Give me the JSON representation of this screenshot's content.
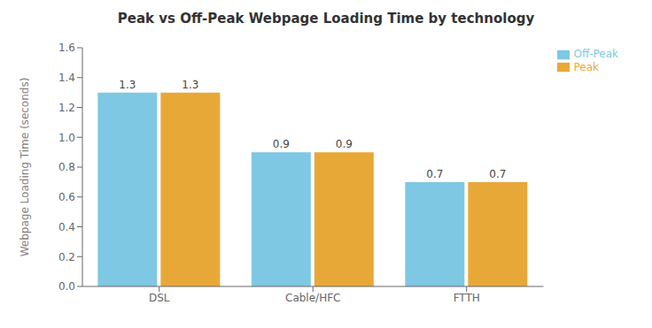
{
  "chart_data": {
    "type": "bar",
    "title": "Peak vs Off-Peak Webpage Loading Time by technology",
    "ylabel": "Webpage Loading Time (seconds)",
    "categories": [
      "DSL",
      "Cable/HFC",
      "FTTH"
    ],
    "series": [
      {
        "name": "Off-Peak",
        "color": "#7EC8E3",
        "values": [
          1.3,
          0.9,
          0.7
        ]
      },
      {
        "name": "Peak",
        "color": "#E8A838",
        "values": [
          1.3,
          0.9,
          0.7
        ]
      }
    ],
    "ylim": [
      0,
      1.6
    ],
    "yticks": [
      {
        "value": 0,
        "label": "0.0"
      },
      0.2,
      0.4,
      0.6,
      0.8,
      {
        "value": 1,
        "label": "1.0"
      },
      1.2,
      1.4,
      1.6
    ],
    "grid": false,
    "legend": "upper right",
    "data_labels": true
  }
}
